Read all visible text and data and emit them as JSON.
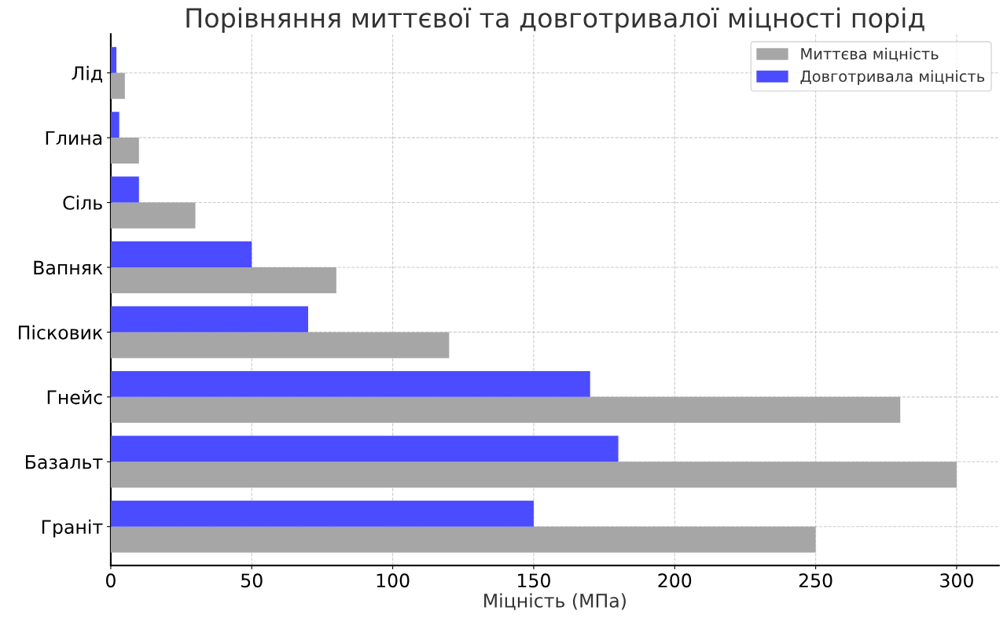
{
  "chart_data": {
    "type": "bar",
    "orientation": "horizontal",
    "title": "Порівняння миттєвої та довготривалої міцності порід",
    "xlabel": "Міцність (МПа)",
    "categories": [
      "Лід",
      "Глина",
      "Сіль",
      "Вапняк",
      "Пісковик",
      "Гнейс",
      "Базальт",
      "Граніт"
    ],
    "series": [
      {
        "name": "Миттєва міцність",
        "color": "#a6a6a6",
        "values": [
          5,
          10,
          30,
          80,
          120,
          280,
          300,
          250
        ]
      },
      {
        "name": "Довготривала міцність",
        "color": "#4b4bff",
        "values": [
          2,
          3,
          10,
          50,
          70,
          170,
          180,
          150
        ]
      }
    ],
    "xlim": [
      0,
      315
    ],
    "xticks": [
      0,
      50,
      100,
      150,
      200,
      250,
      300
    ],
    "grid": true,
    "legend": "top right"
  }
}
